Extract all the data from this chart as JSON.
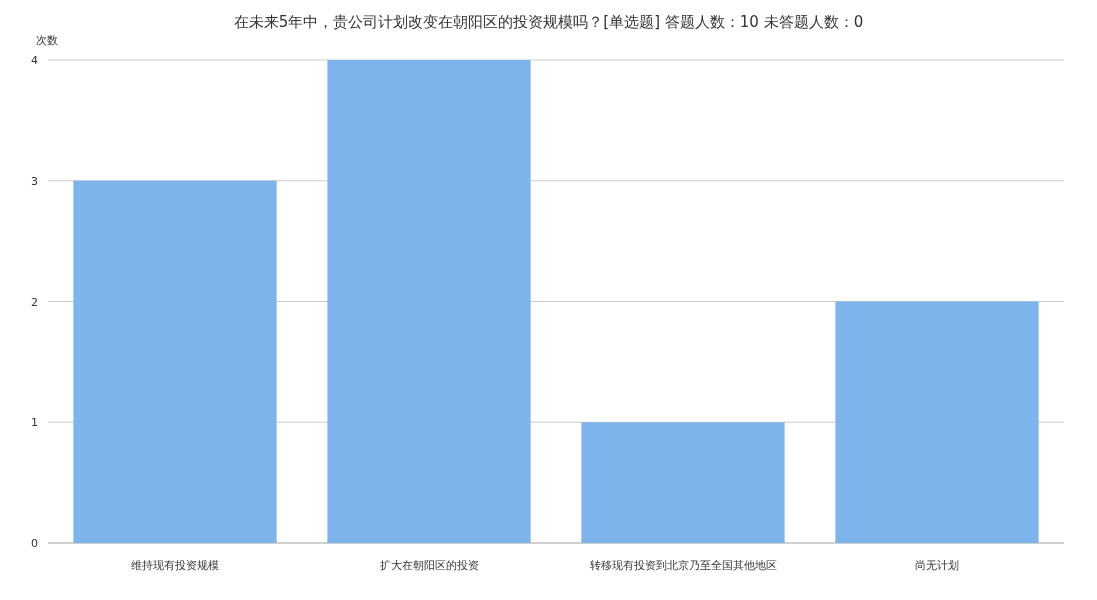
{
  "chart_data": {
    "type": "bar",
    "title": "在未来5年中，贵公司计划改变在朝阳区的投资规模吗？[单选题]  答题人数：10  未答题人数：0",
    "ylabel": "次数",
    "categories": [
      "维持现有投资规模",
      "扩大在朝阳区的投资",
      "转移现有投资到北京乃至全国其他地区",
      "尚无计划"
    ],
    "values": [
      3,
      4,
      1,
      2
    ],
    "color": "#7db4eb",
    "ylim": [
      0,
      4
    ],
    "yticks": [
      0,
      1,
      2,
      3,
      4
    ],
    "grid": "y"
  }
}
